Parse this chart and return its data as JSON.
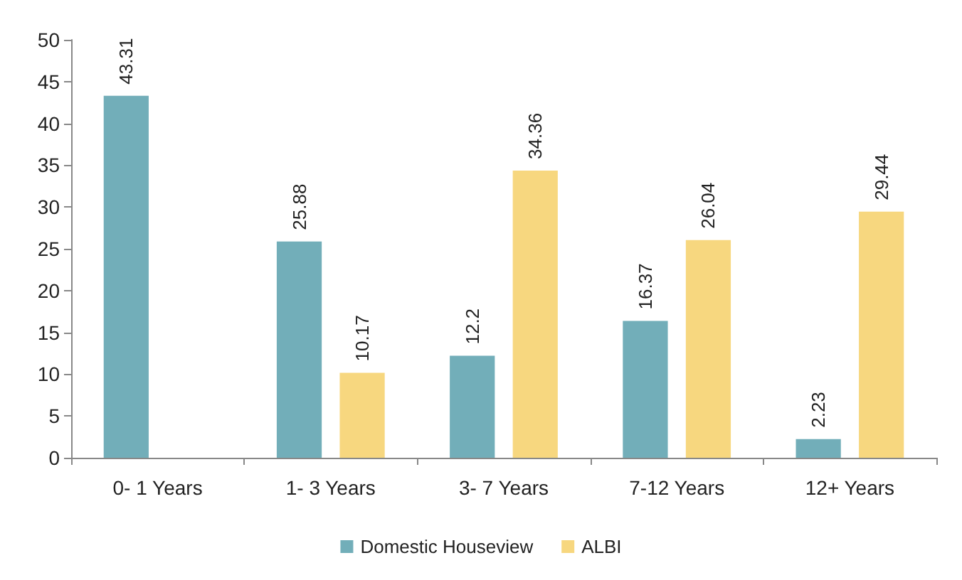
{
  "chart_data": {
    "type": "bar",
    "categories": [
      "0- 1 Years",
      "1- 3 Years",
      "3- 7 Years",
      "7-12 Years",
      "12+ Years"
    ],
    "series": [
      {
        "name": "Domestic Houseview",
        "color": "#72aeb9",
        "values": [
          43.31,
          25.88,
          12.2,
          16.37,
          2.23
        ]
      },
      {
        "name": "ALBI",
        "color": "#f7d77f",
        "values": [
          null,
          10.17,
          34.36,
          26.04,
          29.44
        ]
      }
    ],
    "ylim": [
      0,
      50
    ],
    "yticks": [
      0,
      5,
      10,
      15,
      20,
      25,
      30,
      35,
      40,
      45,
      50
    ],
    "grid": false,
    "legend": "bottom",
    "data_labels": true
  }
}
